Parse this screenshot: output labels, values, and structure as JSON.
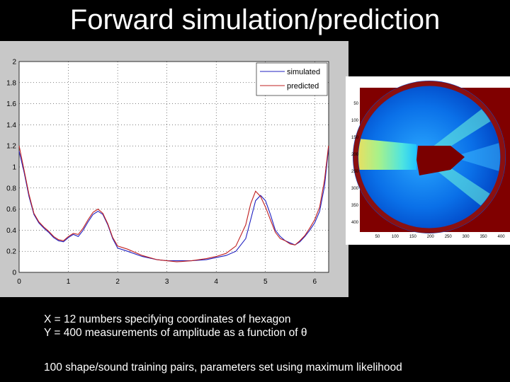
{
  "slide": {
    "title": "Forward simulation/prediction",
    "caption_line1": "X = 12 numbers specifying coordinates of hexagon",
    "caption_line2": "Y = 400 measurements of amplitude as a function of θ",
    "caption_line3": "100 shape/sound training pairs, parameters set using maximum likelihood"
  },
  "chart_data": [
    {
      "type": "line",
      "title": "",
      "xlabel": "",
      "ylabel": "",
      "xlim": [
        0,
        6.2832
      ],
      "ylim": [
        0,
        2
      ],
      "x_ticks": [
        "0",
        "1",
        "2",
        "3",
        "4",
        "5",
        "6"
      ],
      "y_ticks": [
        "0",
        "0.2",
        "0.4",
        "0.6",
        "0.8",
        "1",
        "1.2",
        "1.4",
        "1.6",
        "1.8",
        "2"
      ],
      "grid": true,
      "legend_position": "top-right",
      "series": [
        {
          "name": "simulated",
          "color": "#2020c0",
          "x": [
            0,
            0.1,
            0.2,
            0.3,
            0.4,
            0.5,
            0.6,
            0.7,
            0.8,
            0.9,
            1.0,
            1.1,
            1.2,
            1.3,
            1.4,
            1.5,
            1.6,
            1.7,
            1.8,
            1.9,
            2.0,
            2.2,
            2.5,
            2.8,
            3.0,
            3.2,
            3.5,
            3.8,
            4.0,
            4.2,
            4.4,
            4.6,
            4.7,
            4.8,
            4.9,
            5.0,
            5.1,
            5.2,
            5.3,
            5.4,
            5.5,
            5.6,
            5.7,
            5.8,
            5.9,
            6.0,
            6.1,
            6.2,
            6.28
          ],
          "y": [
            1.15,
            0.95,
            0.72,
            0.55,
            0.47,
            0.42,
            0.38,
            0.33,
            0.3,
            0.29,
            0.33,
            0.36,
            0.34,
            0.4,
            0.48,
            0.55,
            0.58,
            0.55,
            0.45,
            0.32,
            0.23,
            0.2,
            0.15,
            0.12,
            0.11,
            0.11,
            0.11,
            0.12,
            0.14,
            0.16,
            0.2,
            0.32,
            0.5,
            0.68,
            0.73,
            0.68,
            0.55,
            0.4,
            0.34,
            0.3,
            0.28,
            0.26,
            0.29,
            0.34,
            0.4,
            0.47,
            0.58,
            0.82,
            1.18
          ]
        },
        {
          "name": "predicted",
          "color": "#c02020",
          "x": [
            0,
            0.1,
            0.2,
            0.3,
            0.4,
            0.5,
            0.6,
            0.7,
            0.8,
            0.9,
            1.0,
            1.1,
            1.2,
            1.3,
            1.4,
            1.5,
            1.6,
            1.7,
            1.8,
            1.9,
            2.0,
            2.2,
            2.5,
            2.8,
            3.0,
            3.2,
            3.5,
            3.8,
            4.0,
            4.2,
            4.4,
            4.6,
            4.7,
            4.8,
            4.9,
            5.0,
            5.1,
            5.2,
            5.3,
            5.4,
            5.5,
            5.6,
            5.7,
            5.8,
            5.9,
            6.0,
            6.1,
            6.2,
            6.28
          ],
          "y": [
            1.2,
            0.97,
            0.74,
            0.56,
            0.48,
            0.43,
            0.39,
            0.34,
            0.31,
            0.3,
            0.34,
            0.37,
            0.36,
            0.42,
            0.5,
            0.57,
            0.6,
            0.56,
            0.46,
            0.33,
            0.25,
            0.22,
            0.16,
            0.12,
            0.11,
            0.1,
            0.11,
            0.13,
            0.15,
            0.18,
            0.25,
            0.45,
            0.65,
            0.77,
            0.72,
            0.62,
            0.5,
            0.38,
            0.32,
            0.3,
            0.27,
            0.26,
            0.3,
            0.35,
            0.42,
            0.5,
            0.62,
            0.88,
            1.2
          ]
        }
      ]
    },
    {
      "type": "heatmap",
      "title": "",
      "x_ticks": [
        "50",
        "100",
        "150",
        "200",
        "250",
        "300",
        "350",
        "400"
      ],
      "y_ticks": [
        "50",
        "100",
        "150",
        "200",
        "250",
        "300",
        "350",
        "400"
      ],
      "colormap": "jet",
      "colors": {
        "background": "#0050d8",
        "corner": "#800000",
        "ring": "#8b1010",
        "hexagon": "#7a0000",
        "beam": "#66eedd",
        "beam_core": "#ffff66"
      }
    }
  ]
}
